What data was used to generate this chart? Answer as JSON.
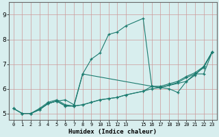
{
  "xlabel": "Humidex (Indice chaleur)",
  "bg_color": "#d8eeee",
  "line_color": "#1a7a6e",
  "grid_color": "#b8d8d8",
  "grid_color_major": "#cc9999",
  "xlim": [
    -0.5,
    23.5
  ],
  "ylim": [
    4.75,
    9.5
  ],
  "xtick_vals": [
    0,
    1,
    2,
    3,
    4,
    5,
    6,
    7,
    8,
    9,
    10,
    11,
    12,
    13,
    15,
    16,
    17,
    18,
    19,
    20,
    21,
    22,
    23
  ],
  "ytick_vals": [
    5,
    6,
    7,
    8,
    9
  ],
  "line1_x": [
    0,
    1,
    2,
    3,
    4,
    5,
    6,
    7,
    8,
    9,
    10,
    11,
    12,
    13,
    15,
    16,
    17,
    18,
    19,
    20,
    21,
    22,
    23
  ],
  "line1_y": [
    5.2,
    5.0,
    5.0,
    5.2,
    5.45,
    5.55,
    5.35,
    5.3,
    6.6,
    7.2,
    7.45,
    8.2,
    8.3,
    8.55,
    8.85,
    6.1,
    6.05,
    6.0,
    5.85,
    6.3,
    6.55,
    6.9,
    7.5
  ],
  "line2_x": [
    0,
    1,
    2,
    3,
    4,
    5,
    6,
    7,
    8,
    9,
    10,
    11,
    12,
    13,
    15,
    16,
    17,
    18,
    19,
    20,
    21,
    22,
    23
  ],
  "line2_y": [
    5.2,
    5.0,
    5.0,
    5.15,
    5.4,
    5.5,
    5.3,
    5.3,
    5.35,
    5.45,
    5.55,
    5.6,
    5.65,
    5.75,
    5.9,
    6.0,
    6.05,
    6.15,
    6.25,
    6.45,
    6.6,
    6.85,
    7.5
  ],
  "line3_x": [
    0,
    1,
    2,
    3,
    4,
    5,
    6,
    7,
    8,
    9,
    10,
    11,
    12,
    13,
    15,
    16,
    17,
    18,
    19,
    20,
    21,
    22,
    23
  ],
  "line3_y": [
    5.2,
    5.0,
    5.0,
    5.15,
    5.4,
    5.5,
    5.3,
    5.3,
    5.35,
    5.45,
    5.55,
    5.6,
    5.65,
    5.75,
    5.9,
    6.1,
    6.1,
    6.2,
    6.3,
    6.5,
    6.65,
    6.9,
    7.5
  ],
  "line4_x": [
    1,
    2,
    3,
    4,
    5,
    6,
    7,
    8,
    16,
    17,
    20,
    21,
    22,
    23
  ],
  "line4_y": [
    5.0,
    5.0,
    5.15,
    5.4,
    5.5,
    5.55,
    5.35,
    6.6,
    6.1,
    6.05,
    6.3,
    6.6,
    6.6,
    7.5
  ]
}
